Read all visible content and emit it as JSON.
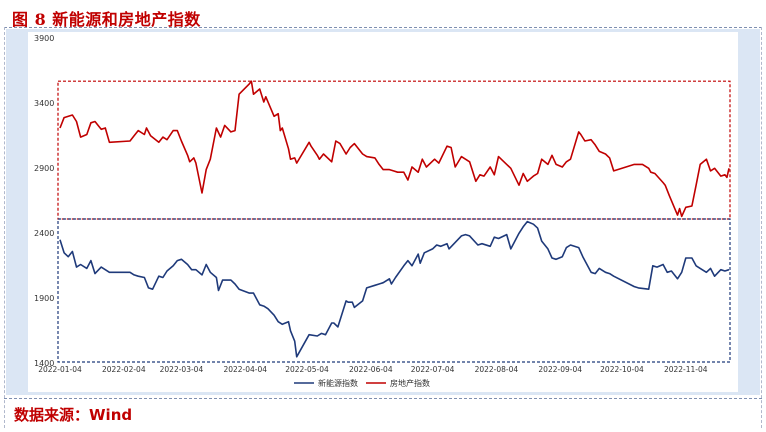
{
  "title": "图 8 新能源和房地产指数",
  "source": "数据来源：Wind",
  "colors": {
    "title": "#c00000",
    "series_ne": "#1f3a7a",
    "series_re": "#c00000",
    "frame_bg": "#dbe6f4",
    "box_top": "#c00000",
    "box_bottom": "#1f3a7a"
  },
  "chart_data": {
    "type": "line",
    "title": "",
    "xlabel": "",
    "ylabel": "",
    "ylim": [
      1400,
      3900
    ],
    "yticks": [
      1400,
      1900,
      2400,
      2900,
      3400,
      3900
    ],
    "xlim": [
      "2022-01-04",
      "2022-11-25"
    ],
    "xticks": [
      "2022-01-04",
      "2022-02-04",
      "2022-03-04",
      "2022-04-04",
      "2022-05-04",
      "2022-06-04",
      "2022-07-04",
      "2022-08-04",
      "2022-09-04",
      "2022-10-04",
      "2022-11-04"
    ],
    "grid": false,
    "legend": "bottom-center",
    "highlight_boxes": [
      {
        "series": "房地产指数",
        "y_range": [
          2500,
          3560
        ]
      },
      {
        "series": "新能源指数",
        "y_range": [
          1400,
          2500
        ]
      }
    ],
    "series": [
      {
        "name": "新能源指数",
        "color": "#1f3a7a",
        "points": [
          [
            "2022-01-04",
            2340
          ],
          [
            "2022-01-06",
            2240
          ],
          [
            "2022-01-08",
            2210
          ],
          [
            "2022-01-10",
            2250
          ],
          [
            "2022-01-12",
            2130
          ],
          [
            "2022-01-14",
            2150
          ],
          [
            "2022-01-17",
            2120
          ],
          [
            "2022-01-19",
            2180
          ],
          [
            "2022-01-21",
            2080
          ],
          [
            "2022-01-24",
            2130
          ],
          [
            "2022-01-26",
            2110
          ],
          [
            "2022-01-28",
            2090
          ],
          [
            "2022-02-07",
            2090
          ],
          [
            "2022-02-09",
            2070
          ],
          [
            "2022-02-11",
            2060
          ],
          [
            "2022-02-14",
            2050
          ],
          [
            "2022-02-16",
            1970
          ],
          [
            "2022-02-18",
            1960
          ],
          [
            "2022-02-21",
            2060
          ],
          [
            "2022-02-23",
            2050
          ],
          [
            "2022-02-25",
            2100
          ],
          [
            "2022-02-28",
            2140
          ],
          [
            "2022-03-02",
            2180
          ],
          [
            "2022-03-04",
            2190
          ],
          [
            "2022-03-07",
            2150
          ],
          [
            "2022-03-09",
            2110
          ],
          [
            "2022-03-11",
            2110
          ],
          [
            "2022-03-14",
            2070
          ],
          [
            "2022-03-16",
            2150
          ],
          [
            "2022-03-18",
            2090
          ],
          [
            "2022-03-21",
            2050
          ],
          [
            "2022-03-22",
            1950
          ],
          [
            "2022-03-24",
            2030
          ],
          [
            "2022-03-28",
            2030
          ],
          [
            "2022-03-30",
            2000
          ],
          [
            "2022-04-01",
            1960
          ],
          [
            "2022-04-06",
            1930
          ],
          [
            "2022-04-08",
            1930
          ],
          [
            "2022-04-11",
            1840
          ],
          [
            "2022-04-13",
            1830
          ],
          [
            "2022-04-15",
            1810
          ],
          [
            "2022-04-18",
            1760
          ],
          [
            "2022-04-20",
            1710
          ],
          [
            "2022-04-22",
            1690
          ],
          [
            "2022-04-25",
            1710
          ],
          [
            "2022-04-26",
            1640
          ],
          [
            "2022-04-28",
            1560
          ],
          [
            "2022-04-29",
            1440
          ],
          [
            "2022-05-05",
            1610
          ],
          [
            "2022-05-09",
            1600
          ],
          [
            "2022-05-11",
            1620
          ],
          [
            "2022-05-13",
            1610
          ],
          [
            "2022-05-16",
            1700
          ],
          [
            "2022-05-17",
            1700
          ],
          [
            "2022-05-19",
            1670
          ],
          [
            "2022-05-23",
            1870
          ],
          [
            "2022-05-24",
            1860
          ],
          [
            "2022-05-26",
            1860
          ],
          [
            "2022-05-27",
            1820
          ],
          [
            "2022-05-31",
            1870
          ],
          [
            "2022-06-02",
            1970
          ],
          [
            "2022-06-06",
            1990
          ],
          [
            "2022-06-08",
            2000
          ],
          [
            "2022-06-10",
            2010
          ],
          [
            "2022-06-13",
            2040
          ],
          [
            "2022-06-14",
            2000
          ],
          [
            "2022-06-16",
            2050
          ],
          [
            "2022-06-20",
            2140
          ],
          [
            "2022-06-22",
            2180
          ],
          [
            "2022-06-24",
            2140
          ],
          [
            "2022-06-27",
            2230
          ],
          [
            "2022-06-28",
            2160
          ],
          [
            "2022-06-30",
            2240
          ],
          [
            "2022-07-04",
            2270
          ],
          [
            "2022-07-06",
            2300
          ],
          [
            "2022-07-08",
            2290
          ],
          [
            "2022-07-11",
            2310
          ],
          [
            "2022-07-12",
            2270
          ],
          [
            "2022-07-15",
            2320
          ],
          [
            "2022-07-18",
            2370
          ],
          [
            "2022-07-20",
            2380
          ],
          [
            "2022-07-22",
            2370
          ],
          [
            "2022-07-26",
            2300
          ],
          [
            "2022-07-28",
            2310
          ],
          [
            "2022-08-01",
            2290
          ],
          [
            "2022-08-03",
            2360
          ],
          [
            "2022-08-05",
            2350
          ],
          [
            "2022-08-09",
            2380
          ],
          [
            "2022-08-11",
            2270
          ],
          [
            "2022-08-15",
            2390
          ],
          [
            "2022-08-17",
            2440
          ],
          [
            "2022-08-19",
            2480
          ],
          [
            "2022-08-22",
            2460
          ],
          [
            "2022-08-24",
            2430
          ],
          [
            "2022-08-26",
            2330
          ],
          [
            "2022-08-29",
            2270
          ],
          [
            "2022-08-31",
            2200
          ],
          [
            "2022-09-02",
            2190
          ],
          [
            "2022-09-05",
            2210
          ],
          [
            "2022-09-07",
            2280
          ],
          [
            "2022-09-09",
            2300
          ],
          [
            "2022-09-13",
            2280
          ],
          [
            "2022-09-15",
            2210
          ],
          [
            "2022-09-19",
            2090
          ],
          [
            "2022-09-21",
            2080
          ],
          [
            "2022-09-23",
            2120
          ],
          [
            "2022-09-26",
            2090
          ],
          [
            "2022-09-28",
            2080
          ],
          [
            "2022-09-30",
            2060
          ],
          [
            "2022-10-10",
            1980
          ],
          [
            "2022-10-12",
            1970
          ],
          [
            "2022-10-17",
            1960
          ],
          [
            "2022-10-19",
            2140
          ],
          [
            "2022-10-21",
            2130
          ],
          [
            "2022-10-24",
            2150
          ],
          [
            "2022-10-26",
            2090
          ],
          [
            "2022-10-28",
            2100
          ],
          [
            "2022-10-31",
            2040
          ],
          [
            "2022-11-02",
            2090
          ],
          [
            "2022-11-04",
            2200
          ],
          [
            "2022-11-07",
            2200
          ],
          [
            "2022-11-09",
            2140
          ],
          [
            "2022-11-11",
            2120
          ],
          [
            "2022-11-14",
            2090
          ],
          [
            "2022-11-16",
            2120
          ],
          [
            "2022-11-18",
            2060
          ],
          [
            "2022-11-21",
            2110
          ],
          [
            "2022-11-23",
            2100
          ],
          [
            "2022-11-25",
            2110
          ]
        ]
      },
      {
        "name": "房地产指数",
        "color": "#c00000",
        "points": [
          [
            "2022-01-04",
            3200
          ],
          [
            "2022-01-06",
            3280
          ],
          [
            "2022-01-10",
            3300
          ],
          [
            "2022-01-12",
            3250
          ],
          [
            "2022-01-14",
            3130
          ],
          [
            "2022-01-17",
            3150
          ],
          [
            "2022-01-19",
            3240
          ],
          [
            "2022-01-21",
            3250
          ],
          [
            "2022-01-24",
            3190
          ],
          [
            "2022-01-26",
            3200
          ],
          [
            "2022-01-28",
            3090
          ],
          [
            "2022-02-07",
            3100
          ],
          [
            "2022-02-09",
            3140
          ],
          [
            "2022-02-11",
            3180
          ],
          [
            "2022-02-14",
            3150
          ],
          [
            "2022-02-15",
            3200
          ],
          [
            "2022-02-17",
            3140
          ],
          [
            "2022-02-21",
            3090
          ],
          [
            "2022-02-23",
            3130
          ],
          [
            "2022-02-25",
            3110
          ],
          [
            "2022-02-28",
            3180
          ],
          [
            "2022-03-02",
            3180
          ],
          [
            "2022-03-04",
            3100
          ],
          [
            "2022-03-07",
            2990
          ],
          [
            "2022-03-08",
            2940
          ],
          [
            "2022-03-10",
            2970
          ],
          [
            "2022-03-11",
            2930
          ],
          [
            "2022-03-14",
            2700
          ],
          [
            "2022-03-16",
            2880
          ],
          [
            "2022-03-18",
            2960
          ],
          [
            "2022-03-21",
            3200
          ],
          [
            "2022-03-23",
            3130
          ],
          [
            "2022-03-25",
            3220
          ],
          [
            "2022-03-28",
            3170
          ],
          [
            "2022-03-30",
            3180
          ],
          [
            "2022-04-01",
            3460
          ],
          [
            "2022-04-06",
            3540
          ],
          [
            "2022-04-07",
            3560
          ],
          [
            "2022-04-08",
            3460
          ],
          [
            "2022-04-11",
            3500
          ],
          [
            "2022-04-13",
            3400
          ],
          [
            "2022-04-14",
            3440
          ],
          [
            "2022-04-18",
            3290
          ],
          [
            "2022-04-20",
            3310
          ],
          [
            "2022-04-21",
            3180
          ],
          [
            "2022-04-22",
            3200
          ],
          [
            "2022-04-25",
            3040
          ],
          [
            "2022-04-26",
            2960
          ],
          [
            "2022-04-28",
            2970
          ],
          [
            "2022-04-29",
            2930
          ],
          [
            "2022-05-05",
            3090
          ],
          [
            "2022-05-06",
            3060
          ],
          [
            "2022-05-09",
            2990
          ],
          [
            "2022-05-10",
            2960
          ],
          [
            "2022-05-12",
            3000
          ],
          [
            "2022-05-16",
            2940
          ],
          [
            "2022-05-18",
            3100
          ],
          [
            "2022-05-20",
            3080
          ],
          [
            "2022-05-23",
            3000
          ],
          [
            "2022-05-25",
            3050
          ],
          [
            "2022-05-27",
            3080
          ],
          [
            "2022-05-31",
            3000
          ],
          [
            "2022-06-02",
            2980
          ],
          [
            "2022-06-06",
            2970
          ],
          [
            "2022-06-08",
            2920
          ],
          [
            "2022-06-10",
            2880
          ],
          [
            "2022-06-13",
            2880
          ],
          [
            "2022-06-15",
            2870
          ],
          [
            "2022-06-17",
            2860
          ],
          [
            "2022-06-20",
            2860
          ],
          [
            "2022-06-22",
            2800
          ],
          [
            "2022-06-24",
            2900
          ],
          [
            "2022-06-27",
            2860
          ],
          [
            "2022-06-29",
            2960
          ],
          [
            "2022-07-01",
            2900
          ],
          [
            "2022-07-05",
            2960
          ],
          [
            "2022-07-07",
            2930
          ],
          [
            "2022-07-11",
            3060
          ],
          [
            "2022-07-13",
            3050
          ],
          [
            "2022-07-15",
            2900
          ],
          [
            "2022-07-18",
            2980
          ],
          [
            "2022-07-20",
            2960
          ],
          [
            "2022-07-22",
            2940
          ],
          [
            "2022-07-25",
            2790
          ],
          [
            "2022-07-27",
            2840
          ],
          [
            "2022-07-29",
            2830
          ],
          [
            "2022-08-01",
            2900
          ],
          [
            "2022-08-03",
            2840
          ],
          [
            "2022-08-05",
            2980
          ],
          [
            "2022-08-09",
            2920
          ],
          [
            "2022-08-11",
            2890
          ],
          [
            "2022-08-15",
            2760
          ],
          [
            "2022-08-17",
            2850
          ],
          [
            "2022-08-19",
            2790
          ],
          [
            "2022-08-22",
            2830
          ],
          [
            "2022-08-24",
            2850
          ],
          [
            "2022-08-26",
            2960
          ],
          [
            "2022-08-29",
            2920
          ],
          [
            "2022-08-31",
            2990
          ],
          [
            "2022-09-02",
            2920
          ],
          [
            "2022-09-05",
            2900
          ],
          [
            "2022-09-07",
            2940
          ],
          [
            "2022-09-09",
            2960
          ],
          [
            "2022-09-13",
            3170
          ],
          [
            "2022-09-14",
            3150
          ],
          [
            "2022-09-16",
            3100
          ],
          [
            "2022-09-19",
            3110
          ],
          [
            "2022-09-21",
            3070
          ],
          [
            "2022-09-23",
            3020
          ],
          [
            "2022-09-26",
            3000
          ],
          [
            "2022-09-28",
            2970
          ],
          [
            "2022-09-30",
            2870
          ],
          [
            "2022-10-10",
            2920
          ],
          [
            "2022-10-14",
            2920
          ],
          [
            "2022-10-17",
            2890
          ],
          [
            "2022-10-18",
            2860
          ],
          [
            "2022-10-20",
            2850
          ],
          [
            "2022-10-24",
            2780
          ],
          [
            "2022-10-25",
            2760
          ],
          [
            "2022-10-27",
            2680
          ],
          [
            "2022-10-31",
            2530
          ],
          [
            "2022-11-01",
            2580
          ],
          [
            "2022-11-02",
            2520
          ],
          [
            "2022-11-04",
            2590
          ],
          [
            "2022-11-07",
            2600
          ],
          [
            "2022-11-09",
            2760
          ],
          [
            "2022-11-11",
            2920
          ],
          [
            "2022-11-14",
            2960
          ],
          [
            "2022-11-16",
            2870
          ],
          [
            "2022-11-18",
            2890
          ],
          [
            "2022-11-21",
            2830
          ],
          [
            "2022-11-23",
            2840
          ],
          [
            "2022-11-24",
            2820
          ],
          [
            "2022-11-25",
            2890
          ]
        ]
      }
    ]
  }
}
